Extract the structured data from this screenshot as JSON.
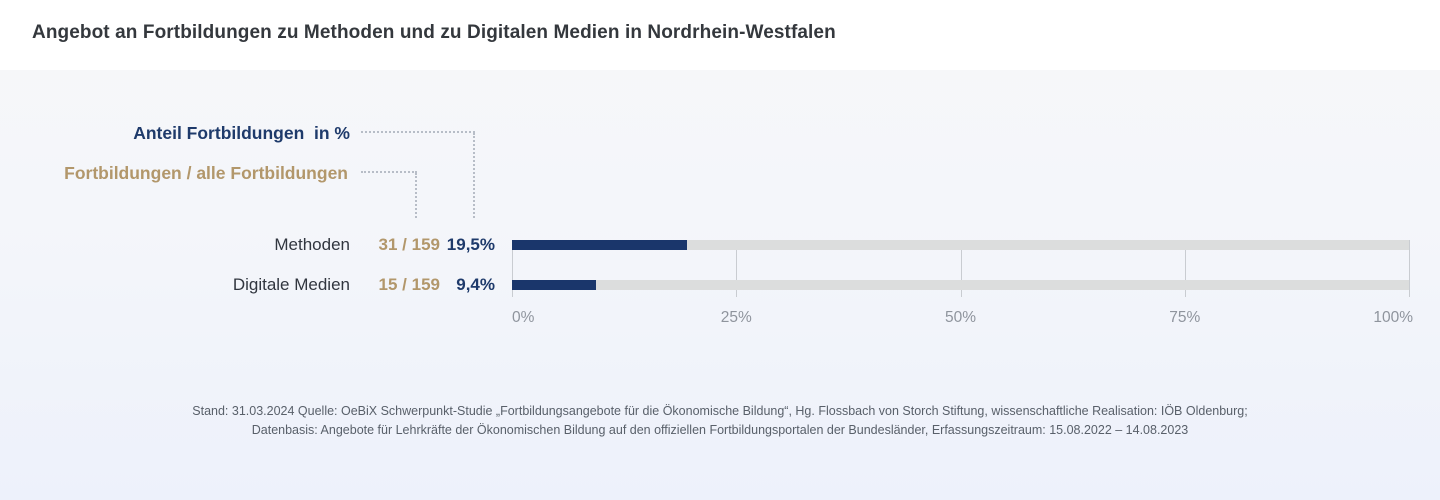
{
  "title": "Angebot an Fortbildungen zu Methoden und zu Digitalen Medien in Nordrhein-Westfalen",
  "legend": {
    "percent_label": "Anteil Fortbildungen  in %",
    "fraction_label": "Fortbildungen / alle Fortbildungen"
  },
  "chart_data": {
    "type": "bar",
    "orientation": "horizontal",
    "categories": [
      "Methoden",
      "Digitale Medien"
    ],
    "values_percent": [
      19.5,
      9.4
    ],
    "value_labels": [
      "19,5%",
      "9,4%"
    ],
    "fractions": [
      "31 / 159",
      "15 / 159"
    ],
    "counts": [
      31,
      15
    ],
    "total_count": 159,
    "x_ticks": [
      "0%",
      "25%",
      "50%",
      "75%",
      "100%"
    ],
    "xlim": [
      0,
      100
    ],
    "grid": true,
    "legend_position": "top-left"
  },
  "footer": {
    "line1": "Stand: 31.03.2024 Quelle: OeBiX Schwerpunkt-Studie „Fortbildungsangebote für die Ökonomische Bildung“, Hg. Flossbach von Storch Stiftung, wissenschaftliche Realisation: IÖB Oldenburg;",
    "line2": "Datenbasis: Angebote für Lehrkräfte der Ökonomischen Bildung auf den offiziellen Fortbildungsportalen der Bundesländer, Erfassungszeitraum: 15.08.2022 – 14.08.2023"
  },
  "colors": {
    "bar_fill": "#1a366b",
    "bar_track": "#dcdddd",
    "accent_navy": "#1e3a6b",
    "accent_tan": "#b2976b",
    "gridline": "#c9ccd1",
    "tick_text": "#8f949d",
    "header_bg": "#ffffff"
  }
}
